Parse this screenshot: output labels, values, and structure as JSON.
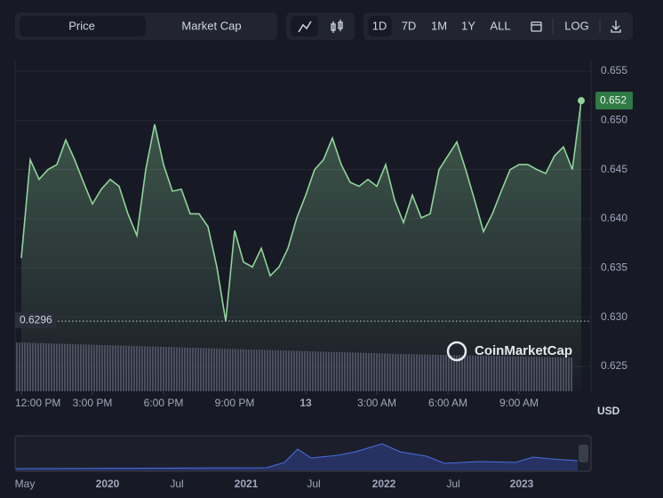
{
  "toolbar": {
    "tabs": [
      "Price",
      "Market Cap"
    ],
    "ranges": [
      "1D",
      "7D",
      "1M",
      "1Y",
      "ALL"
    ],
    "log": "LOG"
  },
  "chart_data": {
    "type": "line",
    "color": "#8fd49a",
    "values": [
      0.636,
      0.646,
      0.644,
      0.645,
      0.6455,
      0.648,
      0.646,
      0.6437,
      0.6415,
      0.643,
      0.644,
      0.6433,
      0.6405,
      0.6383,
      0.645,
      0.6496,
      0.6455,
      0.6428,
      0.643,
      0.6405,
      0.6405,
      0.6392,
      0.6351,
      0.6296,
      0.6388,
      0.6356,
      0.6351,
      0.637,
      0.6342,
      0.6351,
      0.637,
      0.6401,
      0.6424,
      0.645,
      0.646,
      0.6482,
      0.6455,
      0.6437,
      0.6433,
      0.644,
      0.6433,
      0.6455,
      0.6419,
      0.6396,
      0.6424,
      0.6401,
      0.6405,
      0.645,
      0.6464,
      0.6478,
      0.645,
      0.6419,
      0.6387,
      0.6405,
      0.6428,
      0.645,
      0.6455,
      0.6455,
      0.645,
      0.6446,
      0.6464,
      0.6473,
      0.645,
      0.652
    ],
    "xlim": [
      -0.7,
      64.1
    ],
    "xticks": [
      {
        "value": 0,
        "label": "12:00 PM"
      },
      {
        "value": 8,
        "label": "3:00 PM"
      },
      {
        "value": 16,
        "label": "6:00 PM"
      },
      {
        "value": 24,
        "label": "9:00 PM"
      },
      {
        "value": 32,
        "label": "13"
      },
      {
        "value": 40,
        "label": "3:00 AM"
      },
      {
        "value": 48,
        "label": "6:00 AM"
      },
      {
        "value": 56,
        "label": "9:00 AM"
      }
    ],
    "ylim": [
      0.62247,
      0.65608
    ],
    "yticks": [
      0.625,
      {
        "value": 0.63,
        "label": "0.630"
      },
      0.635,
      {
        "value": 0.64,
        "label": "0.640"
      },
      0.645,
      {
        "value": 0.65,
        "label": "0.650"
      },
      0.655
    ],
    "grid": true,
    "low": 0.6296,
    "unit": "USD",
    "watermark": "CoinMarketCap"
  },
  "navigator": {
    "labels": [
      "May",
      "2020",
      "Jul",
      "2021",
      "Jul",
      "2022",
      "Jul",
      "2023"
    ]
  }
}
